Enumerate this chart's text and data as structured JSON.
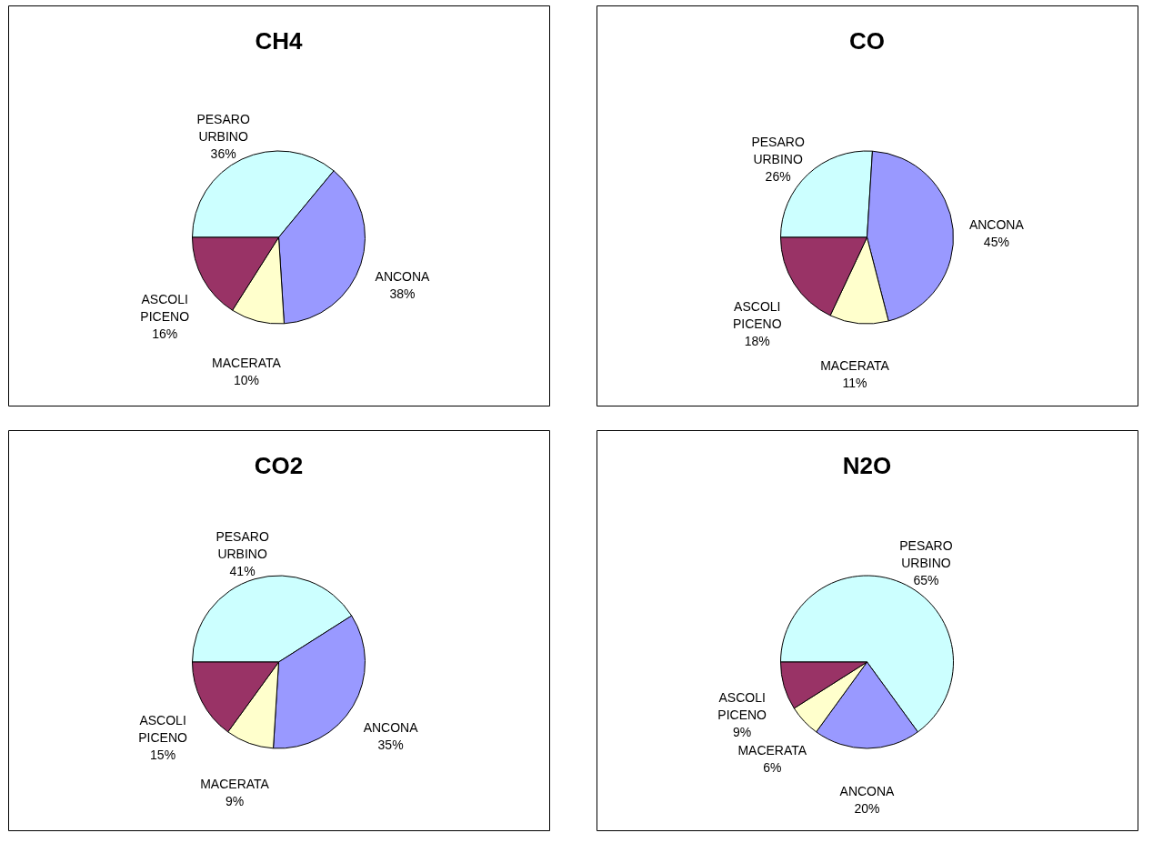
{
  "chart_data": [
    {
      "type": "pie",
      "title": "CH4",
      "categories": [
        "PESARO URBINO",
        "ANCONA",
        "MACERATA",
        "ASCOLI PICENO"
      ],
      "values": [
        36,
        38,
        10,
        16
      ],
      "value_labels": [
        "36%",
        "38%",
        "10%",
        "16%"
      ],
      "colors": [
        "#ccffff",
        "#9999ff",
        "#ffffcc",
        "#993366"
      ],
      "legend": false
    },
    {
      "type": "pie",
      "title": "CO",
      "categories": [
        "PESARO URBINO",
        "ANCONA",
        "MACERATA",
        "ASCOLI PICENO"
      ],
      "values": [
        26,
        45,
        11,
        18
      ],
      "value_labels": [
        "26%",
        "45%",
        "11%",
        "18%"
      ],
      "colors": [
        "#ccffff",
        "#9999ff",
        "#ffffcc",
        "#993366"
      ],
      "legend": false
    },
    {
      "type": "pie",
      "title": "CO2",
      "categories": [
        "PESARO URBINO",
        "ANCONA",
        "MACERATA",
        "ASCOLI PICENO"
      ],
      "values": [
        41,
        35,
        9,
        15
      ],
      "value_labels": [
        "41%",
        "35%",
        "9%",
        "15%"
      ],
      "colors": [
        "#ccffff",
        "#9999ff",
        "#ffffcc",
        "#993366"
      ],
      "legend": false
    },
    {
      "type": "pie",
      "title": "N2O",
      "categories": [
        "PESARO URBINO",
        "ANCONA",
        "MACERATA",
        "ASCOLI PICENO"
      ],
      "values": [
        65,
        20,
        6,
        9
      ],
      "value_labels": [
        "65%",
        "20%",
        "6%",
        "9%"
      ],
      "colors": [
        "#ccffff",
        "#9999ff",
        "#ffffcc",
        "#993366"
      ],
      "legend": false
    }
  ]
}
